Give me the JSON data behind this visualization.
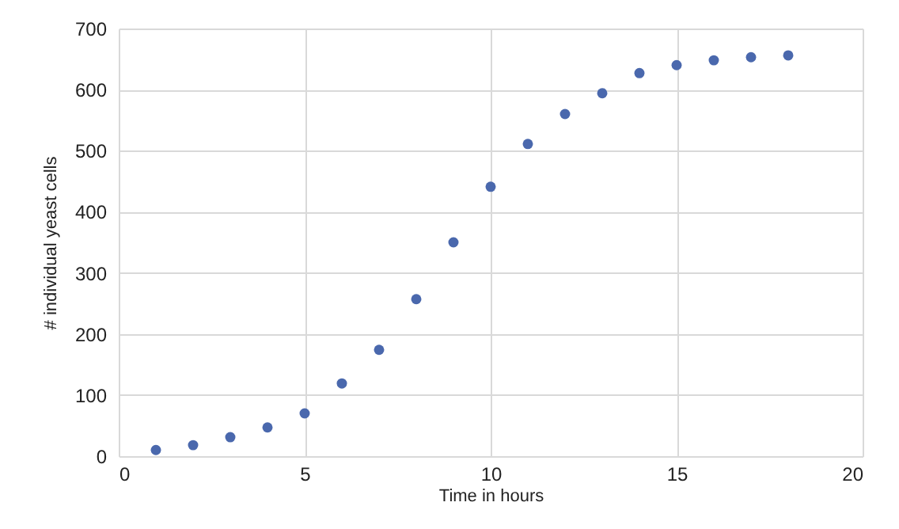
{
  "chart_data": {
    "type": "scatter",
    "xlabel": "Time in hours",
    "ylabel": "# individual yeast cells",
    "x": [
      1,
      2,
      3,
      4,
      5,
      6,
      7,
      8,
      9,
      10,
      11,
      12,
      13,
      14,
      15,
      16,
      17,
      18
    ],
    "series": [
      {
        "color": "#4a68ad",
        "values": [
          10,
          18,
          31,
          47,
          70,
          119,
          174,
          257,
          350,
          441,
          511,
          560,
          594,
          627,
          640,
          648,
          653,
          656
        ]
      }
    ],
    "xlim": [
      0,
      20
    ],
    "xticks": [
      0,
      5,
      10,
      15,
      20
    ],
    "ylim": [
      0,
      700
    ],
    "yticks": [
      0,
      100,
      200,
      300,
      400,
      500,
      600,
      700
    ],
    "grid": true,
    "marker": "circle"
  }
}
